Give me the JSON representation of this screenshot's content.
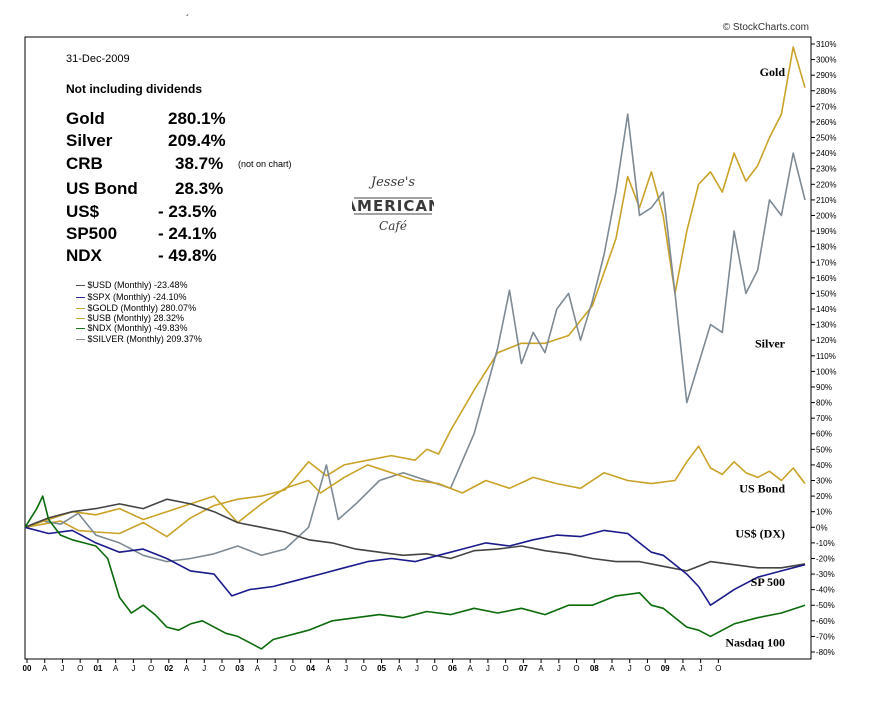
{
  "header": {
    "date": "31-Dec-2009",
    "note": "Not including dividends",
    "credit": "© StockCharts.com",
    "signature": "´"
  },
  "performance": [
    {
      "name": "Gold",
      "value": "280.1%",
      "note": ""
    },
    {
      "name": "Silver",
      "value": "209.4%",
      "note": ""
    },
    {
      "name": "CRB",
      "value": "38.7%",
      "note": "(not on chart)"
    },
    {
      "name": "US Bond",
      "value": "28.3%",
      "note": ""
    },
    {
      "name": "US$",
      "value": "- 23.5%",
      "note": ""
    },
    {
      "name": "SP500",
      "value": "- 24.1%",
      "note": ""
    },
    {
      "name": "NDX",
      "value": "- 49.8%",
      "note": ""
    }
  ],
  "logo": {
    "line1": "Jesse's",
    "line2": "AMERICAN",
    "line3": "Café"
  },
  "legend": [
    {
      "label": "$USD (Monthly) -23.48%",
      "color": "#444444"
    },
    {
      "label": "$SPX (Monthly) -24.10%",
      "color": "#1a1a8c"
    },
    {
      "label": "$GOLD (Monthly) 280.07%",
      "color": "#c9a227"
    },
    {
      "label": "$USB (Monthly) 28.32%",
      "color": "#c9a227"
    },
    {
      "label": "$NDX (Monthly) -49.83%",
      "color": "#0b6b0b"
    },
    {
      "label": "$SILVER (Monthly) 209.37%",
      "color": "#7d8a94"
    }
  ],
  "chart_data": {
    "type": "line",
    "x_unit": "month index from Jan 2000",
    "x_tick_labels": [
      "00",
      "A",
      "J",
      "O",
      "01",
      "A",
      "J",
      "O",
      "02",
      "A",
      "J",
      "O",
      "03",
      "A",
      "J",
      "O",
      "04",
      "A",
      "J",
      "O",
      "05",
      "A",
      "J",
      "O",
      "06",
      "A",
      "J",
      "O",
      "07",
      "A",
      "J",
      "O",
      "08",
      "A",
      "J",
      "O",
      "09",
      "A",
      "J",
      "O"
    ],
    "y_ticks": [
      -80,
      -70,
      -60,
      -50,
      -40,
      -30,
      -20,
      -10,
      0,
      10,
      20,
      30,
      40,
      50,
      60,
      70,
      80,
      90,
      100,
      110,
      120,
      130,
      140,
      150,
      160,
      170,
      180,
      190,
      200,
      210,
      220,
      230,
      240,
      250,
      260,
      270,
      280,
      290,
      300,
      310
    ],
    "y_tick_suffix": "%",
    "ylim": [
      -80,
      310
    ],
    "grid": false,
    "series": [
      {
        "name": "$GOLD (Monthly) 280.07%",
        "color": "#c9a227",
        "label": "Gold",
        "label_y": 292,
        "points": [
          [
            0,
            0
          ],
          [
            3,
            2
          ],
          [
            6,
            4
          ],
          [
            9,
            -2
          ],
          [
            12,
            -3
          ],
          [
            16,
            -4
          ],
          [
            20,
            3
          ],
          [
            24,
            -6
          ],
          [
            28,
            6
          ],
          [
            32,
            14
          ],
          [
            36,
            18
          ],
          [
            40,
            20
          ],
          [
            44,
            24
          ],
          [
            48,
            42
          ],
          [
            51,
            33
          ],
          [
            54,
            40
          ],
          [
            58,
            43
          ],
          [
            62,
            46
          ],
          [
            66,
            43
          ],
          [
            68,
            50
          ],
          [
            70,
            47
          ],
          [
            72,
            62
          ],
          [
            76,
            88
          ],
          [
            80,
            112
          ],
          [
            84,
            118
          ],
          [
            88,
            118
          ],
          [
            92,
            123
          ],
          [
            96,
            142
          ],
          [
            100,
            185
          ],
          [
            102,
            225
          ],
          [
            104,
            205
          ],
          [
            106,
            228
          ],
          [
            108,
            200
          ],
          [
            110,
            150
          ],
          [
            112,
            190
          ],
          [
            114,
            220
          ],
          [
            116,
            228
          ],
          [
            118,
            215
          ],
          [
            120,
            240
          ],
          [
            122,
            222
          ],
          [
            124,
            232
          ],
          [
            126,
            250
          ],
          [
            128,
            265
          ],
          [
            130,
            308
          ],
          [
            132,
            282
          ]
        ]
      },
      {
        "name": "$SILVER (Monthly) 209.37%",
        "color": "#7d8a94",
        "label": "Silver",
        "label_y": 118,
        "points": [
          [
            0,
            0
          ],
          [
            3,
            4
          ],
          [
            6,
            2
          ],
          [
            9,
            9
          ],
          [
            12,
            -5
          ],
          [
            16,
            -10
          ],
          [
            20,
            -18
          ],
          [
            24,
            -22
          ],
          [
            28,
            -20
          ],
          [
            32,
            -17
          ],
          [
            36,
            -12
          ],
          [
            40,
            -18
          ],
          [
            44,
            -14
          ],
          [
            48,
            0
          ],
          [
            51,
            40
          ],
          [
            53,
            5
          ],
          [
            56,
            15
          ],
          [
            60,
            30
          ],
          [
            64,
            35
          ],
          [
            68,
            30
          ],
          [
            72,
            25
          ],
          [
            76,
            60
          ],
          [
            80,
            115
          ],
          [
            82,
            152
          ],
          [
            84,
            105
          ],
          [
            86,
            125
          ],
          [
            88,
            112
          ],
          [
            90,
            140
          ],
          [
            92,
            150
          ],
          [
            94,
            120
          ],
          [
            96,
            145
          ],
          [
            98,
            175
          ],
          [
            100,
            215
          ],
          [
            102,
            265
          ],
          [
            104,
            200
          ],
          [
            106,
            205
          ],
          [
            108,
            215
          ],
          [
            110,
            150
          ],
          [
            112,
            80
          ],
          [
            114,
            105
          ],
          [
            116,
            130
          ],
          [
            118,
            125
          ],
          [
            120,
            190
          ],
          [
            122,
            150
          ],
          [
            124,
            165
          ],
          [
            126,
            210
          ],
          [
            128,
            200
          ],
          [
            130,
            240
          ],
          [
            132,
            210
          ]
        ]
      },
      {
        "name": "$USB (Monthly) 28.32%",
        "color": "#c9a227",
        "label": "US Bond",
        "label_y": 25,
        "points": [
          [
            0,
            0
          ],
          [
            4,
            5
          ],
          [
            8,
            10
          ],
          [
            12,
            8
          ],
          [
            16,
            12
          ],
          [
            20,
            5
          ],
          [
            24,
            10
          ],
          [
            28,
            15
          ],
          [
            32,
            20
          ],
          [
            36,
            3
          ],
          [
            40,
            15
          ],
          [
            44,
            25
          ],
          [
            48,
            30
          ],
          [
            50,
            22
          ],
          [
            54,
            32
          ],
          [
            58,
            40
          ],
          [
            62,
            35
          ],
          [
            66,
            30
          ],
          [
            70,
            28
          ],
          [
            74,
            22
          ],
          [
            78,
            30
          ],
          [
            82,
            25
          ],
          [
            86,
            32
          ],
          [
            90,
            28
          ],
          [
            94,
            25
          ],
          [
            98,
            35
          ],
          [
            102,
            30
          ],
          [
            106,
            28
          ],
          [
            110,
            30
          ],
          [
            112,
            42
          ],
          [
            114,
            52
          ],
          [
            116,
            38
          ],
          [
            118,
            34
          ],
          [
            120,
            42
          ],
          [
            122,
            35
          ],
          [
            124,
            32
          ],
          [
            126,
            36
          ],
          [
            128,
            30
          ],
          [
            130,
            38
          ],
          [
            132,
            28
          ]
        ]
      },
      {
        "name": "$USD (Monthly) -23.48%",
        "color": "#444444",
        "label": "US$ (DX)",
        "label_y": -4,
        "points": [
          [
            0,
            0
          ],
          [
            4,
            6
          ],
          [
            8,
            10
          ],
          [
            12,
            12
          ],
          [
            16,
            15
          ],
          [
            20,
            12
          ],
          [
            24,
            18
          ],
          [
            28,
            15
          ],
          [
            32,
            10
          ],
          [
            36,
            3
          ],
          [
            40,
            0
          ],
          [
            44,
            -3
          ],
          [
            48,
            -8
          ],
          [
            52,
            -10
          ],
          [
            56,
            -14
          ],
          [
            60,
            -16
          ],
          [
            64,
            -18
          ],
          [
            68,
            -17
          ],
          [
            72,
            -20
          ],
          [
            76,
            -15
          ],
          [
            80,
            -14
          ],
          [
            84,
            -12
          ],
          [
            88,
            -15
          ],
          [
            92,
            -17
          ],
          [
            96,
            -20
          ],
          [
            100,
            -22
          ],
          [
            104,
            -22
          ],
          [
            108,
            -25
          ],
          [
            112,
            -28
          ],
          [
            116,
            -22
          ],
          [
            120,
            -24
          ],
          [
            124,
            -26
          ],
          [
            128,
            -26
          ],
          [
            132,
            -23.5
          ]
        ]
      },
      {
        "name": "$SPX (Monthly) -24.10%",
        "color": "#1a1a8c",
        "label": "SP 500",
        "label_y": -35,
        "points": [
          [
            0,
            0
          ],
          [
            4,
            -4
          ],
          [
            8,
            -2
          ],
          [
            12,
            -10
          ],
          [
            16,
            -16
          ],
          [
            20,
            -14
          ],
          [
            24,
            -20
          ],
          [
            28,
            -28
          ],
          [
            32,
            -30
          ],
          [
            35,
            -44
          ],
          [
            38,
            -40
          ],
          [
            42,
            -38
          ],
          [
            46,
            -34
          ],
          [
            50,
            -30
          ],
          [
            54,
            -26
          ],
          [
            58,
            -22
          ],
          [
            62,
            -20
          ],
          [
            66,
            -22
          ],
          [
            70,
            -18
          ],
          [
            74,
            -14
          ],
          [
            78,
            -10
          ],
          [
            82,
            -12
          ],
          [
            86,
            -8
          ],
          [
            90,
            -5
          ],
          [
            94,
            -6
          ],
          [
            98,
            -2
          ],
          [
            102,
            -4
          ],
          [
            104,
            -10
          ],
          [
            106,
            -16
          ],
          [
            108,
            -18
          ],
          [
            112,
            -30
          ],
          [
            114,
            -38
          ],
          [
            116,
            -50
          ],
          [
            118,
            -45
          ],
          [
            120,
            -40
          ],
          [
            124,
            -32
          ],
          [
            128,
            -28
          ],
          [
            132,
            -24
          ]
        ]
      },
      {
        "name": "$NDX (Monthly) -49.83%",
        "color": "#0b6b0b",
        "label": "Nasdaq 100",
        "label_y": -74,
        "points": [
          [
            0,
            0
          ],
          [
            2,
            12
          ],
          [
            3,
            20
          ],
          [
            4,
            5
          ],
          [
            6,
            -5
          ],
          [
            8,
            -8
          ],
          [
            10,
            -10
          ],
          [
            12,
            -12
          ],
          [
            14,
            -20
          ],
          [
            16,
            -45
          ],
          [
            18,
            -55
          ],
          [
            20,
            -50
          ],
          [
            22,
            -56
          ],
          [
            24,
            -64
          ],
          [
            26,
            -66
          ],
          [
            28,
            -62
          ],
          [
            30,
            -60
          ],
          [
            32,
            -64
          ],
          [
            34,
            -68
          ],
          [
            36,
            -70
          ],
          [
            38,
            -74
          ],
          [
            40,
            -78
          ],
          [
            42,
            -72
          ],
          [
            44,
            -70
          ],
          [
            46,
            -68
          ],
          [
            48,
            -66
          ],
          [
            52,
            -60
          ],
          [
            56,
            -58
          ],
          [
            60,
            -56
          ],
          [
            64,
            -58
          ],
          [
            68,
            -54
          ],
          [
            72,
            -56
          ],
          [
            76,
            -52
          ],
          [
            80,
            -55
          ],
          [
            84,
            -52
          ],
          [
            88,
            -56
          ],
          [
            92,
            -50
          ],
          [
            96,
            -50
          ],
          [
            100,
            -44
          ],
          [
            104,
            -42
          ],
          [
            106,
            -50
          ],
          [
            108,
            -52
          ],
          [
            110,
            -58
          ],
          [
            112,
            -64
          ],
          [
            114,
            -66
          ],
          [
            116,
            -70
          ],
          [
            120,
            -62
          ],
          [
            124,
            -58
          ],
          [
            128,
            -55
          ],
          [
            132,
            -50
          ]
        ]
      }
    ]
  }
}
